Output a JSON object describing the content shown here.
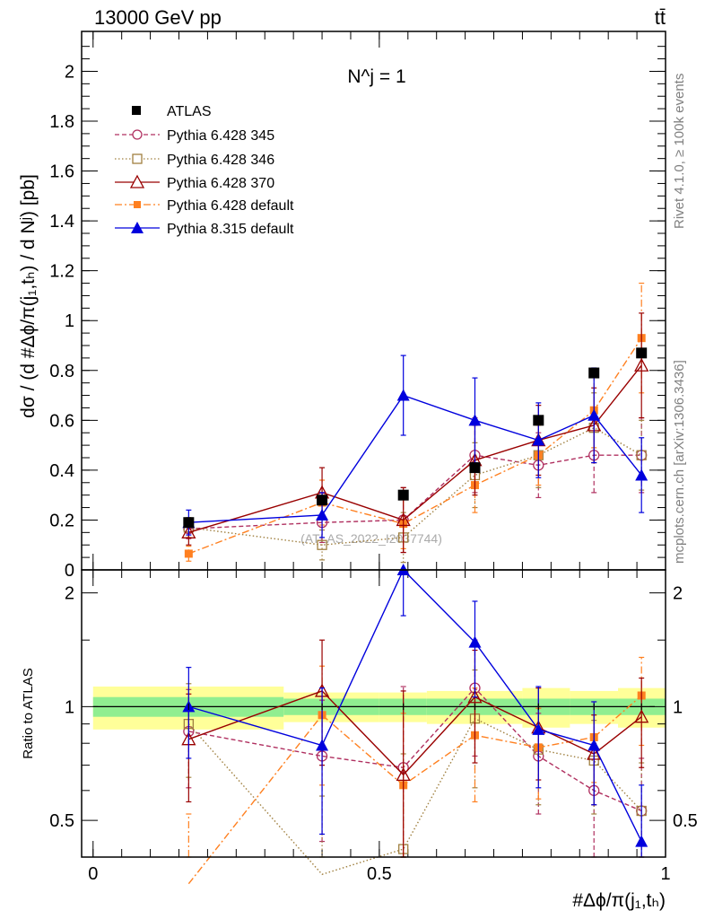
{
  "header": {
    "left": "13000 GeV pp",
    "right": "tt̄"
  },
  "panel_label": "N^j = 1",
  "side_labels": {
    "rivet": "Rivet 4.1.0, ≥ 100k events",
    "mcplots": "mcplots.cern.ch [arXiv:1306.3436]"
  },
  "watermark": "(ATLAS_2022_I2037744)",
  "axes": {
    "ylabel_main": "dσ / (d #Δϕ/π(j₁,tₕ) / d Nʲ) [pb]",
    "ylabel_ratio": "Ratio to ATLAS",
    "xlabel": "#Δϕ/π(j₁,tₕ)",
    "main_yticks": [
      "0",
      "0.2",
      "0.4",
      "0.6",
      "0.8",
      "1",
      "1.2",
      "1.4",
      "1.6",
      "1.8",
      "2"
    ],
    "ratio_yticks_left": [
      "0.5",
      "1",
      "2"
    ],
    "ratio_yticks_right": [
      "0.5",
      "1",
      "2"
    ],
    "xticks": [
      "0",
      "0.5",
      "1"
    ]
  },
  "colors": {
    "atlas": "#000000",
    "p345": "#b03060",
    "p346": "#a08040",
    "p370": "#990000",
    "p6def": "#ff8020",
    "p8def": "#0000dd",
    "band_inner": "#90ee90",
    "band_outer": "#ffff99"
  },
  "chart_data": {
    "type": "scatter",
    "main_ylim": [
      0,
      2.16
    ],
    "ratio_ylim": [
      0.4,
      2.3
    ],
    "xlim": [
      -0.02,
      1.0
    ],
    "bins": [
      [
        0.0,
        0.333
      ],
      [
        0.333,
        0.5
      ],
      [
        0.5,
        0.583
      ],
      [
        0.583,
        0.75
      ],
      [
        0.75,
        0.833
      ],
      [
        0.833,
        0.917
      ],
      [
        0.917,
        1.0
      ]
    ],
    "x": [
      0.167,
      0.4,
      0.542,
      0.667,
      0.778,
      0.875,
      0.958
    ],
    "series": [
      {
        "name": "ATLAS",
        "key": "atlas",
        "marker": "square-filled",
        "line": "none",
        "values": [
          0.19,
          0.28,
          0.3,
          0.41,
          0.6,
          0.79,
          0.87
        ],
        "err": [
          0.02,
          0.02,
          0.02,
          0.02,
          0.02,
          0.02,
          0.02
        ]
      },
      {
        "name": "Pythia 6.428 345",
        "key": "p345",
        "marker": "circle-open",
        "line": "dashed",
        "values": [
          0.165,
          0.19,
          0.2,
          0.46,
          0.42,
          0.46,
          0.46
        ],
        "err": [
          0.04,
          0.08,
          0.13,
          0.15,
          0.13,
          0.15,
          0.15
        ]
      },
      {
        "name": "Pythia 6.428 346",
        "key": "p346",
        "marker": "square-open",
        "line": "dotted",
        "values": [
          0.17,
          0.1,
          0.13,
          0.38,
          0.46,
          0.57,
          0.46
        ],
        "err": [
          0.04,
          0.06,
          0.1,
          0.13,
          0.13,
          0.14,
          0.14
        ]
      },
      {
        "name": "Pythia 6.428 370",
        "key": "p370",
        "marker": "triangle-open",
        "line": "solid",
        "values": [
          0.15,
          0.31,
          0.2,
          0.44,
          0.52,
          0.58,
          0.82
        ],
        "err": [
          0.05,
          0.1,
          0.13,
          0.14,
          0.14,
          0.15,
          0.21
        ]
      },
      {
        "name": "Pythia 6.428 default",
        "key": "p6def",
        "marker": "square-filled-small",
        "line": "dashdot",
        "values": [
          0.065,
          0.27,
          0.185,
          0.34,
          0.46,
          0.64,
          0.93
        ],
        "err": [
          0.03,
          0.09,
          0.1,
          0.11,
          0.12,
          0.15,
          0.22
        ]
      },
      {
        "name": "Pythia 8.315 default",
        "key": "p8def",
        "marker": "triangle-filled",
        "line": "solid",
        "values": [
          0.19,
          0.22,
          0.7,
          0.6,
          0.52,
          0.62,
          0.38
        ],
        "err": [
          0.05,
          0.09,
          0.16,
          0.17,
          0.15,
          0.19,
          0.15
        ]
      }
    ],
    "ratio": {
      "band_inner": [
        0.06,
        0.05,
        0.05,
        0.05,
        0.05,
        0.05,
        0.05
      ],
      "band_outer": [
        0.13,
        0.09,
        0.09,
        0.1,
        0.12,
        0.1,
        0.12
      ],
      "series": [
        {
          "key": "p345",
          "values": [
            0.86,
            0.74,
            0.69,
            1.12,
            0.74,
            0.6,
            0.53
          ],
          "err": [
            0.25,
            0.3,
            0.44,
            0.38,
            0.22,
            0.2,
            0.2
          ]
        },
        {
          "key": "p346",
          "values": [
            0.9,
            0.36,
            0.42,
            0.93,
            0.77,
            0.72,
            0.53
          ],
          "err": [
            0.25,
            0.22,
            0.33,
            0.32,
            0.22,
            0.2,
            0.18
          ]
        },
        {
          "key": "p370",
          "values": [
            0.82,
            1.1,
            0.66,
            1.06,
            0.88,
            0.75,
            0.94
          ],
          "err": [
            0.26,
            0.4,
            0.44,
            0.35,
            0.24,
            0.2,
            0.25
          ]
        },
        {
          "key": "p6def",
          "values": [
            0.34,
            0.95,
            0.62,
            0.84,
            0.78,
            0.83,
            1.07
          ],
          "err": [
            0.18,
            0.33,
            0.34,
            0.28,
            0.21,
            0.2,
            0.28
          ]
        },
        {
          "key": "p8def",
          "values": [
            1.0,
            0.79,
            2.3,
            1.48,
            0.87,
            0.79,
            0.44
          ],
          "err": [
            0.27,
            0.33,
            0.56,
            0.42,
            0.26,
            0.24,
            0.18
          ]
        }
      ]
    }
  }
}
